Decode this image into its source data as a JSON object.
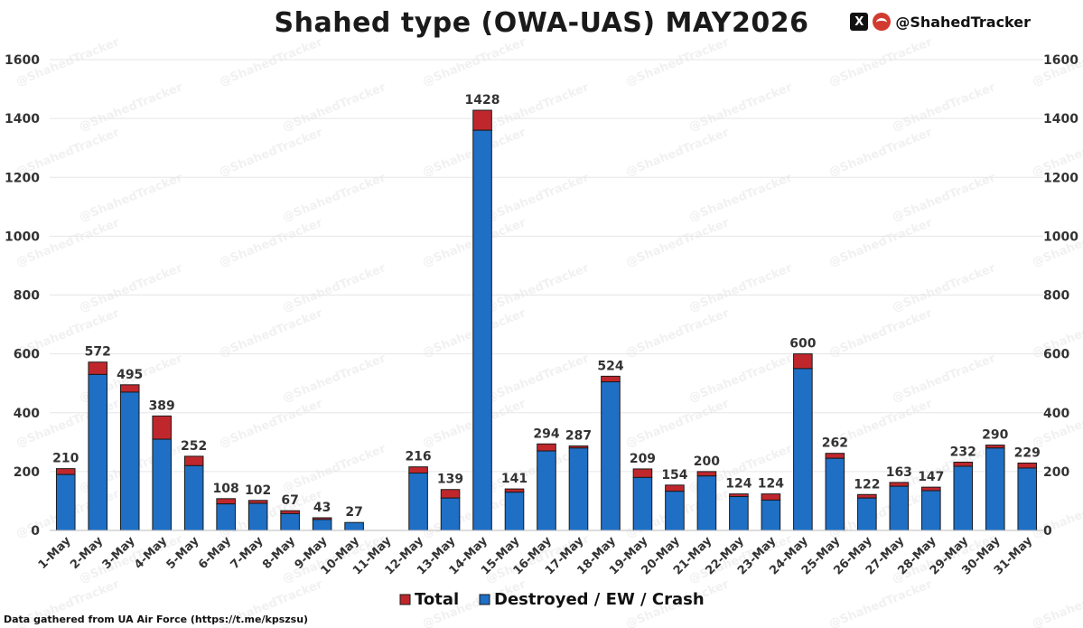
{
  "header": {
    "title": "Shahed type (OWA-UAS) MAY2026",
    "brand_x_glyph": "X",
    "brand_handle": "@ShahedTracker"
  },
  "footer": {
    "source": "Data gathered from UA Air Force (https://t.me/kpszsu)"
  },
  "colors": {
    "total": "#c0272d",
    "destroyed": "#1f6fc5",
    "outline": "#1a1a1a",
    "grid": "#e6e6e6"
  },
  "chart_data": {
    "type": "bar",
    "stacked": true,
    "title": "Shahed type (OWA-UAS) MAY2026",
    "xlabel": "",
    "ylabel": "",
    "ylim": [
      0,
      1600
    ],
    "yticks": [
      0,
      200,
      400,
      600,
      800,
      1000,
      1200,
      1400,
      1600
    ],
    "grid": true,
    "legend_position": "bottom-center",
    "categories": [
      "1-May",
      "2-May",
      "3-May",
      "4-May",
      "5-May",
      "6-May",
      "7-May",
      "8-May",
      "9-May",
      "10-May",
      "11-May",
      "12-May",
      "13-May",
      "14-May",
      "15-May",
      "16-May",
      "17-May",
      "18-May",
      "19-May",
      "20-May",
      "21-May",
      "22-May",
      "23-May",
      "24-May",
      "25-May",
      "26-May",
      "27-May",
      "28-May",
      "29-May",
      "30-May",
      "31-May"
    ],
    "series": [
      {
        "name": "Total",
        "color": "#c0272d",
        "values": [
          210,
          572,
          495,
          389,
          252,
          108,
          102,
          67,
          43,
          27,
          null,
          216,
          139,
          1428,
          141,
          294,
          287,
          524,
          209,
          154,
          200,
          124,
          124,
          600,
          262,
          122,
          163,
          147,
          232,
          290,
          229
        ]
      },
      {
        "name": "Destroyed / EW / Crash",
        "color": "#1f6fc5",
        "values": [
          190,
          530,
          470,
          310,
          220,
          90,
          92,
          57,
          37,
          27,
          null,
          195,
          110,
          1360,
          130,
          270,
          280,
          505,
          180,
          133,
          185,
          115,
          103,
          550,
          245,
          110,
          150,
          135,
          218,
          280,
          212
        ]
      }
    ],
    "data_labels": [
      "210",
      "572",
      "495",
      "389",
      "252",
      "108",
      "102",
      "67",
      "43",
      "27",
      "",
      "216",
      "139",
      "1428",
      "141",
      "294",
      "287",
      "524",
      "209",
      "154",
      "200",
      "124",
      "124",
      "600",
      "262",
      "122",
      "163",
      "147",
      "232",
      "290",
      "229"
    ]
  }
}
